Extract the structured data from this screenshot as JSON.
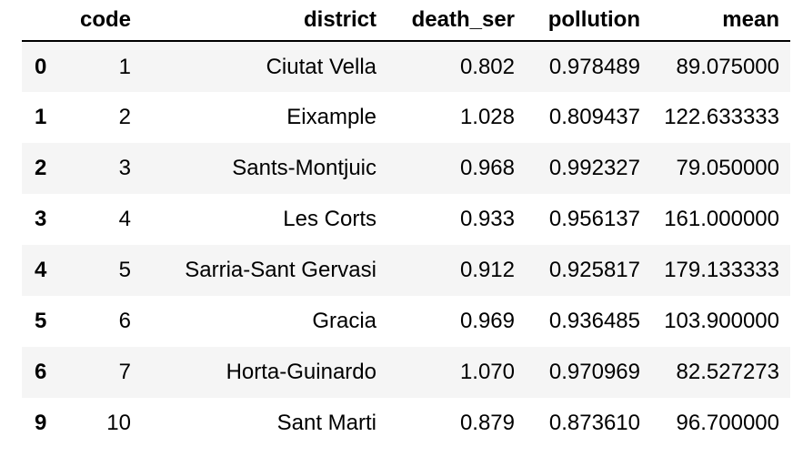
{
  "columns": [
    "",
    "code",
    "district",
    "death_ser",
    "pollution",
    "mean"
  ],
  "rows": [
    {
      "index": "0",
      "code": "1",
      "district": "Ciutat Vella",
      "death_ser": "0.802",
      "pollution": "0.978489",
      "mean": "89.075000"
    },
    {
      "index": "1",
      "code": "2",
      "district": "Eixample",
      "death_ser": "1.028",
      "pollution": "0.809437",
      "mean": "122.633333"
    },
    {
      "index": "2",
      "code": "3",
      "district": "Sants-Montjuic",
      "death_ser": "0.968",
      "pollution": "0.992327",
      "mean": "79.050000"
    },
    {
      "index": "3",
      "code": "4",
      "district": "Les Corts",
      "death_ser": "0.933",
      "pollution": "0.956137",
      "mean": "161.000000"
    },
    {
      "index": "4",
      "code": "5",
      "district": "Sarria-Sant Gervasi",
      "death_ser": "0.912",
      "pollution": "0.925817",
      "mean": "179.133333"
    },
    {
      "index": "5",
      "code": "6",
      "district": "Gracia",
      "death_ser": "0.969",
      "pollution": "0.936485",
      "mean": "103.900000"
    },
    {
      "index": "6",
      "code": "7",
      "district": "Horta-Guinardo",
      "death_ser": "1.070",
      "pollution": "0.970969",
      "mean": "82.527273"
    },
    {
      "index": "9",
      "code": "10",
      "district": "Sant Marti",
      "death_ser": "0.879",
      "pollution": "0.873610",
      "mean": "96.700000"
    }
  ]
}
